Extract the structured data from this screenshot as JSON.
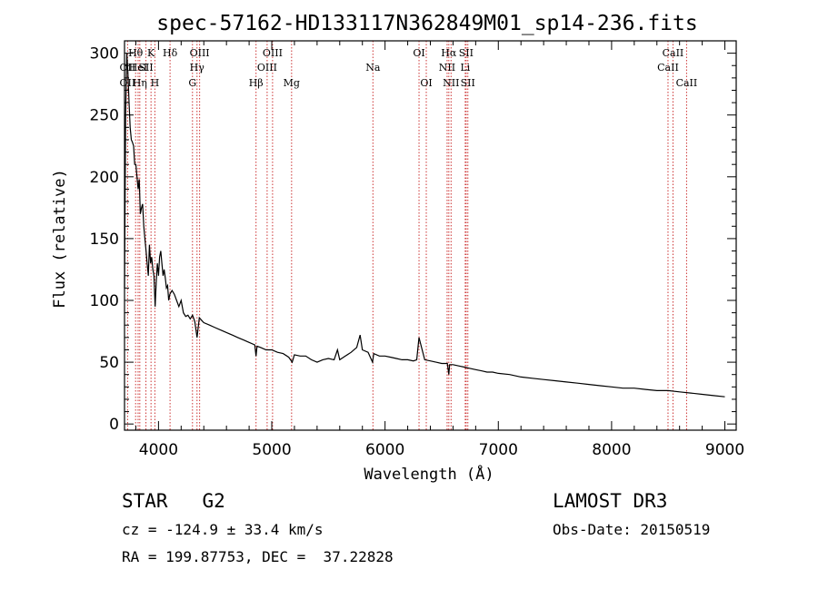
{
  "chart_data": {
    "type": "line",
    "title": "spec-57162-HD133117N362849M01_sp14-236.fits",
    "xlabel": "Wavelength (Å)",
    "ylabel": "Flux (relative)",
    "xlim": [
      3700,
      9100
    ],
    "ylim": [
      -5,
      310
    ],
    "xticks": [
      {
        "value": 4000,
        "label": "4000"
      },
      {
        "value": 5000,
        "label": "5000"
      },
      {
        "value": 6000,
        "label": "6000"
      },
      {
        "value": 7000,
        "label": "7000"
      },
      {
        "value": 8000,
        "label": "8000"
      },
      {
        "value": 9000,
        "label": "9000"
      }
    ],
    "yticks": [
      {
        "value": 0,
        "label": "0"
      },
      {
        "value": 50,
        "label": "50"
      },
      {
        "value": 100,
        "label": "100"
      },
      {
        "value": 150,
        "label": "150"
      },
      {
        "value": 200,
        "label": "200"
      },
      {
        "value": 250,
        "label": "250"
      },
      {
        "value": 300,
        "label": "300"
      }
    ],
    "series": [
      {
        "name": "flux",
        "x": [
          3700,
          3710,
          3720,
          3730,
          3740,
          3750,
          3760,
          3770,
          3780,
          3790,
          3800,
          3810,
          3820,
          3830,
          3840,
          3850,
          3860,
          3870,
          3880,
          3890,
          3900,
          3910,
          3920,
          3930,
          3940,
          3950,
          3960,
          3970,
          3980,
          3990,
          4000,
          4010,
          4020,
          4030,
          4040,
          4050,
          4060,
          4070,
          4080,
          4090,
          4100,
          4120,
          4140,
          4160,
          4180,
          4200,
          4220,
          4240,
          4260,
          4280,
          4300,
          4320,
          4340,
          4360,
          4380,
          4400,
          4450,
          4500,
          4550,
          4600,
          4650,
          4700,
          4750,
          4800,
          4850,
          4861,
          4870,
          4900,
          4950,
          5000,
          5050,
          5100,
          5150,
          5180,
          5200,
          5250,
          5300,
          5350,
          5400,
          5450,
          5500,
          5550,
          5580,
          5600,
          5650,
          5700,
          5750,
          5780,
          5800,
          5850,
          5890,
          5900,
          5950,
          6000,
          6050,
          6100,
          6150,
          6200,
          6250,
          6280,
          6300,
          6350,
          6400,
          6450,
          6500,
          6550,
          6563,
          6570,
          6600,
          6650,
          6700,
          6750,
          6800,
          6850,
          6900,
          6950,
          7000,
          7100,
          7200,
          7300,
          7400,
          7500,
          7600,
          7700,
          7800,
          7900,
          8000,
          8100,
          8200,
          8300,
          8400,
          8500,
          8600,
          8700,
          8800,
          8900,
          9000
        ],
        "values": [
          110,
          250,
          300,
          285,
          260,
          240,
          230,
          228,
          225,
          210,
          210,
          200,
          190,
          198,
          170,
          175,
          178,
          160,
          150,
          140,
          130,
          120,
          145,
          130,
          135,
          125,
          120,
          95,
          115,
          130,
          120,
          135,
          140,
          130,
          120,
          125,
          118,
          110,
          112,
          100,
          105,
          108,
          105,
          100,
          95,
          100,
          90,
          87,
          88,
          85,
          88,
          83,
          70,
          86,
          84,
          82,
          80,
          78,
          76,
          74,
          72,
          70,
          68,
          66,
          64,
          55,
          63,
          62,
          60,
          60,
          58,
          57,
          54,
          50,
          56,
          55,
          55,
          52,
          50,
          52,
          53,
          52,
          60,
          52,
          55,
          58,
          62,
          72,
          60,
          58,
          50,
          57,
          55,
          55,
          54,
          53,
          52,
          52,
          51,
          52,
          70,
          52,
          51,
          50,
          49,
          49,
          40,
          48,
          48,
          47,
          46,
          45,
          44,
          43,
          42,
          42,
          41,
          40,
          38,
          37,
          36,
          35,
          34,
          33,
          32,
          31,
          30,
          29,
          29,
          28,
          27,
          27,
          26,
          25,
          24,
          23,
          22
        ]
      }
    ],
    "line_markers": [
      {
        "wavelength": 3727,
        "label": "OII",
        "row": 2
      },
      {
        "wavelength": 3727,
        "label": "OII",
        "row": 3
      },
      {
        "wavelength": 3798,
        "label": "Hθ",
        "row": 1
      },
      {
        "wavelength": 3820,
        "label": "HeI",
        "row": 2
      },
      {
        "wavelength": 3835,
        "label": "Hη",
        "row": 3
      },
      {
        "wavelength": 3889,
        "label": "SII",
        "row": 2
      },
      {
        "wavelength": 3934,
        "label": "K",
        "row": 1
      },
      {
        "wavelength": 3968,
        "label": "H",
        "row": 3
      },
      {
        "wavelength": 4102,
        "label": "Hδ",
        "row": 1
      },
      {
        "wavelength": 4300,
        "label": "G",
        "row": 3
      },
      {
        "wavelength": 4340,
        "label": "Hγ",
        "row": 2
      },
      {
        "wavelength": 4363,
        "label": "OIII",
        "row": 1
      },
      {
        "wavelength": 4861,
        "label": "Hβ",
        "row": 3
      },
      {
        "wavelength": 4959,
        "label": "OIII",
        "row": 2
      },
      {
        "wavelength": 5007,
        "label": "OIII",
        "row": 1
      },
      {
        "wavelength": 5175,
        "label": "Mg",
        "row": 3
      },
      {
        "wavelength": 5893,
        "label": "Na",
        "row": 2
      },
      {
        "wavelength": 6300,
        "label": "OI",
        "row": 1
      },
      {
        "wavelength": 6364,
        "label": "OI",
        "row": 3
      },
      {
        "wavelength": 6548,
        "label": "NII",
        "row": 2
      },
      {
        "wavelength": 6563,
        "label": "Hα",
        "row": 1
      },
      {
        "wavelength": 6583,
        "label": "NII",
        "row": 3
      },
      {
        "wavelength": 6708,
        "label": "Li",
        "row": 2
      },
      {
        "wavelength": 6716,
        "label": "SII",
        "row": 1
      },
      {
        "wavelength": 6731,
        "label": "SII",
        "row": 3
      },
      {
        "wavelength": 8498,
        "label": "CaII",
        "row": 2
      },
      {
        "wavelength": 8542,
        "label": "CaII",
        "row": 1
      },
      {
        "wavelength": 8662,
        "label": "CaII",
        "row": 3
      }
    ]
  },
  "info": {
    "class_label": "STAR",
    "subclass": "G2",
    "survey": "LAMOST DR3",
    "cz": "cz = -124.9 ± 33.4 km/s",
    "obs_date": "Obs-Date: 20150519",
    "coords": "RA = 199.87753, DEC =  37.22828"
  },
  "colors": {
    "spectrum": "#000000",
    "marker": "#cc3333",
    "axes": "#000000"
  }
}
